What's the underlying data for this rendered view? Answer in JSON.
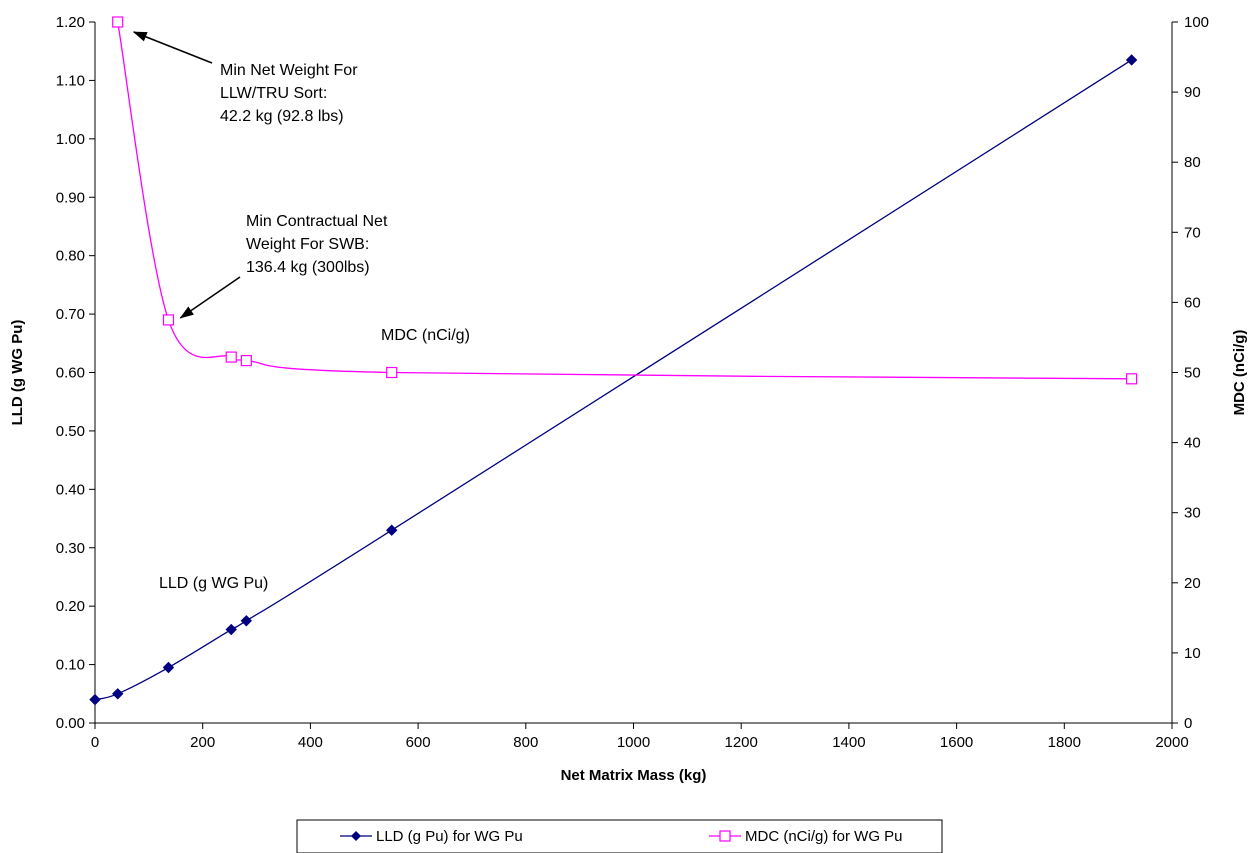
{
  "chart_data": {
    "type": "line",
    "title": "",
    "xlabel": "Net Matrix Mass (kg)",
    "ylabel_left": "LLD (g WG Pu)",
    "ylabel_right": "MDC (nCi/g)",
    "xlim": [
      0,
      2000
    ],
    "ylim_left": [
      0,
      1.2
    ],
    "ylim_right": [
      0,
      100
    ],
    "x_ticks": [
      "0",
      "200",
      "400",
      "600",
      "800",
      "1000",
      "1200",
      "1400",
      "1600",
      "1800",
      "2000"
    ],
    "y_left_ticks": [
      "0.00",
      "0.10",
      "0.20",
      "0.30",
      "0.40",
      "0.50",
      "0.60",
      "0.70",
      "0.80",
      "0.90",
      "1.00",
      "1.10",
      "1.20"
    ],
    "y_right_ticks": [
      "0",
      "10",
      "20",
      "30",
      "40",
      "50",
      "60",
      "70",
      "80",
      "90",
      "100"
    ],
    "grid": false,
    "legend_position": "bottom",
    "series": [
      {
        "name": "LLD (g Pu) for WG Pu",
        "axis": "left",
        "color": "#000080",
        "marker": "filled-diamond",
        "x": [
          0,
          42.2,
          136.4,
          253,
          281,
          551,
          1925
        ],
        "y": [
          0.04,
          0.05,
          0.095,
          0.16,
          0.175,
          0.33,
          1.135
        ]
      },
      {
        "name": "MDC (nCi/g) for WG Pu",
        "axis": "right",
        "color": "#ff00ff",
        "marker": "open-square",
        "x": [
          42.2,
          136.4,
          253,
          281,
          551,
          1925
        ],
        "y": [
          100,
          57.5,
          52.2,
          51.7,
          50,
          49.1
        ]
      }
    ],
    "annotations": [
      {
        "lines": [
          "Min Net Weight For",
          "LLW/TRU Sort:",
          "42.2 kg (92.8 lbs)"
        ],
        "arrow_to": {
          "x": 42.2,
          "y_right": 100
        }
      },
      {
        "lines": [
          "Min Contractual Net",
          "Weight For SWB:",
          "136.4 kg (300lbs)"
        ],
        "arrow_to": {
          "x": 136.4,
          "y_right": 57.5
        }
      },
      {
        "lines": [
          "MDC (nCi/g)"
        ],
        "at": {
          "x": 550,
          "y_right": 55
        }
      },
      {
        "lines": [
          "LLD (g WG Pu)"
        ],
        "at": {
          "x": 120,
          "y_left": 0.21
        }
      }
    ]
  }
}
